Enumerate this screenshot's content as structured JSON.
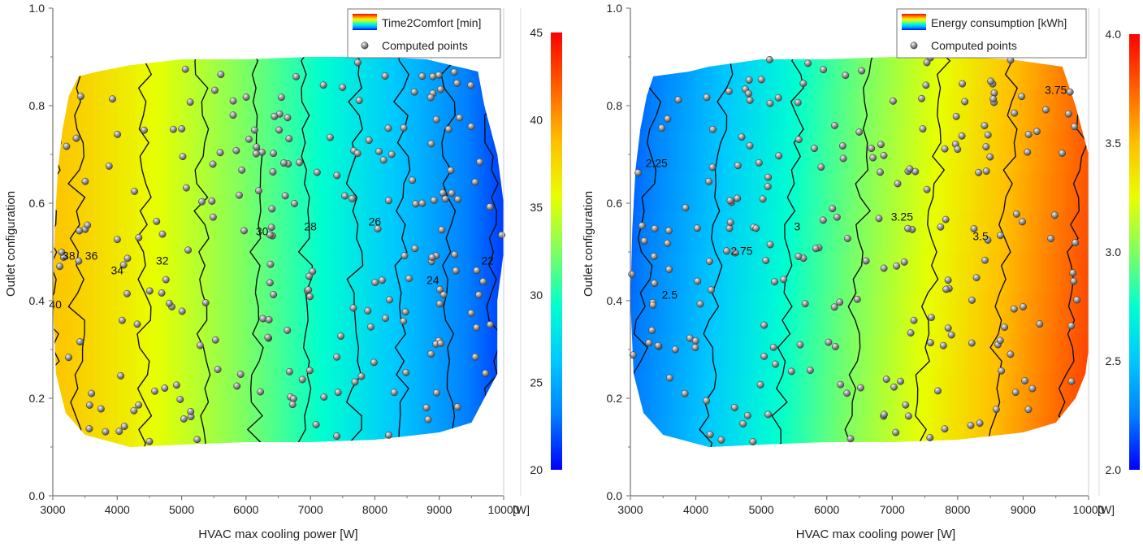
{
  "chart_data": [
    {
      "type": "heatmap",
      "title": "",
      "xlabel": "HVAC max cooling power [W]",
      "ylabel": "Outlet configuration",
      "x_unit": "[W]",
      "xlim": [
        3000,
        10000
      ],
      "ylim": [
        0.0,
        1.0
      ],
      "x_ticks": [
        3000,
        4000,
        5000,
        6000,
        7000,
        8000,
        9000,
        10000
      ],
      "y_ticks": [
        0.0,
        0.2,
        0.4,
        0.6,
        0.8,
        1.0
      ],
      "x_tick_labels": [
        "3000",
        "4000",
        "5000",
        "6000",
        "7000",
        "8000",
        "9000",
        "10000"
      ],
      "y_tick_labels": [
        "0.0",
        "0.2",
        "0.4",
        "0.6",
        "0.8",
        "1.0"
      ],
      "legend": {
        "placement": "top-right",
        "surface_label": "Time2Comfort [min]",
        "points_label": "Computed points"
      },
      "colorbar": {
        "range": [
          20,
          45
        ],
        "ticks": [
          20,
          25,
          30,
          35,
          40,
          45
        ],
        "tick_labels": [
          "20",
          "25",
          "30",
          "35",
          "40",
          "45"
        ]
      },
      "field": {
        "x_low": 38.5,
        "x_high": 21.5,
        "curvature": 1.2,
        "y_effect": 0
      },
      "contours": [
        {
          "level": 22,
          "label": "22",
          "label_at": [
            9750,
            0.48
          ]
        },
        {
          "level": 24,
          "label": "24",
          "label_at": [
            8900,
            0.44
          ]
        },
        {
          "level": 26,
          "label": "26",
          "label_at": [
            8000,
            0.56
          ]
        },
        {
          "level": 28,
          "label": "28",
          "label_at": [
            7000,
            0.55
          ]
        },
        {
          "level": 30,
          "label": "30",
          "label_at": [
            6250,
            0.54
          ]
        },
        {
          "level": 32,
          "label": "32",
          "label_at": [
            4700,
            0.48
          ]
        },
        {
          "level": 34,
          "label": "34",
          "label_at": [
            4000,
            0.46
          ]
        },
        {
          "level": 36,
          "label": "36",
          "label_at": [
            3600,
            0.49
          ]
        },
        {
          "level": 38,
          "label": "38",
          "label_at": [
            3250,
            0.49
          ]
        },
        {
          "level": 40,
          "label": "40",
          "label_at": [
            3040,
            0.39
          ]
        }
      ],
      "domain_boundary": [
        [
          3400,
          0.86
        ],
        [
          3700,
          0.87
        ],
        [
          4200,
          0.883
        ],
        [
          5000,
          0.895
        ],
        [
          6000,
          0.895
        ],
        [
          7000,
          0.9
        ],
        [
          8000,
          0.9
        ],
        [
          8800,
          0.895
        ],
        [
          9600,
          0.87
        ],
        [
          9700,
          0.8
        ],
        [
          9900,
          0.7
        ],
        [
          10000,
          0.6
        ],
        [
          10000,
          0.5
        ],
        [
          9900,
          0.4
        ],
        [
          9900,
          0.3
        ],
        [
          9900,
          0.25
        ],
        [
          9700,
          0.2
        ],
        [
          9500,
          0.15
        ],
        [
          9000,
          0.13
        ],
        [
          8000,
          0.115
        ],
        [
          7000,
          0.11
        ],
        [
          6000,
          0.11
        ],
        [
          5000,
          0.105
        ],
        [
          4200,
          0.1
        ],
        [
          3500,
          0.125
        ],
        [
          3200,
          0.17
        ],
        [
          3050,
          0.25
        ],
        [
          3000,
          0.4
        ],
        [
          3030,
          0.55
        ],
        [
          3080,
          0.67
        ],
        [
          3150,
          0.75
        ],
        [
          3250,
          0.82
        ]
      ],
      "points_count": 220
    },
    {
      "type": "heatmap",
      "title": "",
      "xlabel": "HVAC max cooling power [W]",
      "ylabel": "Outlet configuration",
      "x_unit": "[W]",
      "xlim": [
        3000,
        10000
      ],
      "ylim": [
        0.0,
        1.0
      ],
      "x_ticks": [
        3000,
        4000,
        5000,
        6000,
        7000,
        8000,
        9000,
        10000
      ],
      "y_ticks": [
        0.0,
        0.2,
        0.4,
        0.6,
        0.8,
        1.0
      ],
      "x_tick_labels": [
        "3000",
        "4000",
        "5000",
        "6000",
        "7000",
        "8000",
        "9000",
        "10000"
      ],
      "y_tick_labels": [
        "0.0",
        "0.2",
        "0.4",
        "0.6",
        "0.8",
        "1.0"
      ],
      "legend": {
        "placement": "top-right",
        "surface_label": "Energy consumption [kWh]",
        "points_label": "Computed points"
      },
      "colorbar": {
        "range": [
          2.0,
          4.0
        ],
        "ticks": [
          2.0,
          2.5,
          3.0,
          3.5,
          4.0
        ],
        "tick_labels": [
          "2.0",
          "2.5",
          "3.0",
          "3.5",
          "4.0"
        ]
      },
      "field": {
        "x_low": 2.2,
        "x_high": 3.8,
        "curvature": 1.0,
        "y_effect": 0.1
      },
      "contours": [
        {
          "level": 2.25,
          "label": "2.25",
          "label_at": [
            3400,
            0.68
          ]
        },
        {
          "level": 2.5,
          "label": "2.5",
          "label_at": [
            3600,
            0.41
          ]
        },
        {
          "level": 2.75,
          "label": "2.75",
          "label_at": [
            4700,
            0.5
          ]
        },
        {
          "level": 3.0,
          "label": "3",
          "label_at": [
            5550,
            0.55
          ]
        },
        {
          "level": 3.25,
          "label": "3.25",
          "label_at": [
            7150,
            0.57
          ]
        },
        {
          "level": 3.5,
          "label": "3.5",
          "label_at": [
            8350,
            0.53
          ]
        },
        {
          "level": 3.75,
          "label": "3.75",
          "label_at": [
            9500,
            0.83
          ]
        }
      ],
      "domain_boundary": [
        [
          3350,
          0.86
        ],
        [
          3900,
          0.87
        ],
        [
          4200,
          0.88
        ],
        [
          5000,
          0.895
        ],
        [
          6000,
          0.895
        ],
        [
          7000,
          0.9
        ],
        [
          8000,
          0.9
        ],
        [
          8800,
          0.895
        ],
        [
          9600,
          0.88
        ],
        [
          9800,
          0.8
        ],
        [
          10000,
          0.7
        ],
        [
          10000,
          0.6
        ],
        [
          10000,
          0.5
        ],
        [
          10000,
          0.4
        ],
        [
          10000,
          0.3
        ],
        [
          9950,
          0.25
        ],
        [
          9800,
          0.2
        ],
        [
          9500,
          0.15
        ],
        [
          9000,
          0.13
        ],
        [
          8000,
          0.115
        ],
        [
          7000,
          0.11
        ],
        [
          6000,
          0.11
        ],
        [
          5000,
          0.105
        ],
        [
          4200,
          0.1
        ],
        [
          3500,
          0.125
        ],
        [
          3200,
          0.17
        ],
        [
          3050,
          0.25
        ],
        [
          3000,
          0.4
        ],
        [
          3030,
          0.55
        ],
        [
          3080,
          0.67
        ],
        [
          3150,
          0.75
        ],
        [
          3250,
          0.82
        ]
      ],
      "points_count": 220
    }
  ]
}
